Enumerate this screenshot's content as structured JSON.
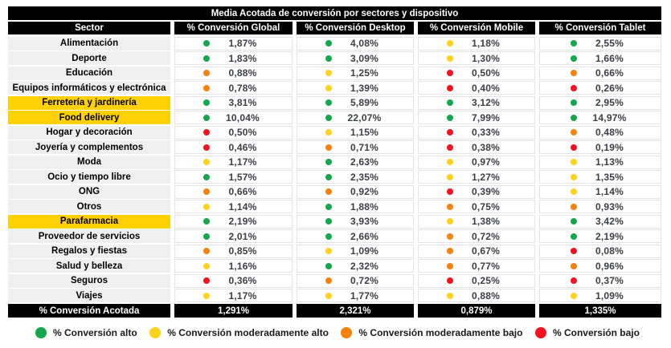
{
  "chart_data": {
    "type": "table",
    "title": "Media Acotada de conversión por sectores y dispositivo",
    "columns": [
      "Sector",
      "% Conversión Global",
      "% Conversión Desktop",
      "% Conversión Mobile",
      "% Conversión Tablet"
    ],
    "rows": [
      {
        "sector": "Alimentación",
        "highlighted": false,
        "cells": [
          {
            "level": "green",
            "value": "1,87%"
          },
          {
            "level": "green",
            "value": "4,08%"
          },
          {
            "level": "yellow",
            "value": "1,18%"
          },
          {
            "level": "green",
            "value": "2,55%"
          }
        ]
      },
      {
        "sector": "Deporte",
        "highlighted": false,
        "cells": [
          {
            "level": "green",
            "value": "1,83%"
          },
          {
            "level": "green",
            "value": "3,09%"
          },
          {
            "level": "yellow",
            "value": "1,30%"
          },
          {
            "level": "green",
            "value": "1,66%"
          }
        ]
      },
      {
        "sector": "Educación",
        "highlighted": false,
        "cells": [
          {
            "level": "orange",
            "value": "0,88%"
          },
          {
            "level": "yellow",
            "value": "1,25%"
          },
          {
            "level": "red",
            "value": "0,50%"
          },
          {
            "level": "orange",
            "value": "0,66%"
          }
        ]
      },
      {
        "sector": "Equipos informáticos y electrónica",
        "highlighted": false,
        "cells": [
          {
            "level": "orange",
            "value": "0,78%"
          },
          {
            "level": "yellow",
            "value": "1,39%"
          },
          {
            "level": "red",
            "value": "0,40%"
          },
          {
            "level": "red",
            "value": "0,26%"
          }
        ]
      },
      {
        "sector": "Ferretería y jardinería",
        "highlighted": true,
        "cells": [
          {
            "level": "green",
            "value": "3,81%"
          },
          {
            "level": "green",
            "value": "5,89%"
          },
          {
            "level": "green",
            "value": "3,12%"
          },
          {
            "level": "green",
            "value": "2,95%"
          }
        ]
      },
      {
        "sector": "Food delivery",
        "highlighted": true,
        "cells": [
          {
            "level": "green",
            "value": "10,04%"
          },
          {
            "level": "green",
            "value": "22,07%"
          },
          {
            "level": "green",
            "value": "7,99%"
          },
          {
            "level": "green",
            "value": "14,97%"
          }
        ]
      },
      {
        "sector": "Hogar y decoración",
        "highlighted": false,
        "cells": [
          {
            "level": "red",
            "value": "0,50%"
          },
          {
            "level": "yellow",
            "value": "1,15%"
          },
          {
            "level": "red",
            "value": "0,33%"
          },
          {
            "level": "orange",
            "value": "0,48%"
          }
        ]
      },
      {
        "sector": "Joyería y complementos",
        "highlighted": false,
        "cells": [
          {
            "level": "red",
            "value": "0,46%"
          },
          {
            "level": "orange",
            "value": "0,71%"
          },
          {
            "level": "red",
            "value": "0,38%"
          },
          {
            "level": "red",
            "value": "0,19%"
          }
        ]
      },
      {
        "sector": "Moda",
        "highlighted": false,
        "cells": [
          {
            "level": "yellow",
            "value": "1,17%"
          },
          {
            "level": "green",
            "value": "2,63%"
          },
          {
            "level": "yellow",
            "value": "0,97%"
          },
          {
            "level": "yellow",
            "value": "1,13%"
          }
        ]
      },
      {
        "sector": "Ocio y tiempo libre",
        "highlighted": false,
        "cells": [
          {
            "level": "green",
            "value": "1,57%"
          },
          {
            "level": "green",
            "value": "2,35%"
          },
          {
            "level": "yellow",
            "value": "1,27%"
          },
          {
            "level": "yellow",
            "value": "1,35%"
          }
        ]
      },
      {
        "sector": "ONG",
        "highlighted": false,
        "cells": [
          {
            "level": "orange",
            "value": "0,66%"
          },
          {
            "level": "orange",
            "value": "0,92%"
          },
          {
            "level": "red",
            "value": "0,39%"
          },
          {
            "level": "yellow",
            "value": "1,14%"
          }
        ]
      },
      {
        "sector": "Otros",
        "highlighted": false,
        "cells": [
          {
            "level": "yellow",
            "value": "1,14%"
          },
          {
            "level": "green",
            "value": "1,88%"
          },
          {
            "level": "orange",
            "value": "0,75%"
          },
          {
            "level": "orange",
            "value": "0,93%"
          }
        ]
      },
      {
        "sector": "Parafarmacia",
        "highlighted": true,
        "cells": [
          {
            "level": "green",
            "value": "2,19%"
          },
          {
            "level": "green",
            "value": "3,93%"
          },
          {
            "level": "yellow",
            "value": "1,38%"
          },
          {
            "level": "green",
            "value": "3,42%"
          }
        ]
      },
      {
        "sector": "Proveedor de servicios",
        "highlighted": false,
        "cells": [
          {
            "level": "green",
            "value": "2,01%"
          },
          {
            "level": "green",
            "value": "2,66%"
          },
          {
            "level": "orange",
            "value": "0,72%"
          },
          {
            "level": "green",
            "value": "2,19%"
          }
        ]
      },
      {
        "sector": "Regalos y fiestas",
        "highlighted": false,
        "cells": [
          {
            "level": "orange",
            "value": "0,85%"
          },
          {
            "level": "yellow",
            "value": "1,09%"
          },
          {
            "level": "orange",
            "value": "0,67%"
          },
          {
            "level": "red",
            "value": "0,08%"
          }
        ]
      },
      {
        "sector": "Salud y belleza",
        "highlighted": false,
        "cells": [
          {
            "level": "yellow",
            "value": "1,16%"
          },
          {
            "level": "green",
            "value": "2,32%"
          },
          {
            "level": "orange",
            "value": "0,77%"
          },
          {
            "level": "orange",
            "value": "0,96%"
          }
        ]
      },
      {
        "sector": "Seguros",
        "highlighted": false,
        "cells": [
          {
            "level": "red",
            "value": "0,36%"
          },
          {
            "level": "orange",
            "value": "0,72%"
          },
          {
            "level": "red",
            "value": "0,25%"
          },
          {
            "level": "red",
            "value": "0,37%"
          }
        ]
      },
      {
        "sector": "Viajes",
        "highlighted": false,
        "cells": [
          {
            "level": "yellow",
            "value": "1,17%"
          },
          {
            "level": "yellow",
            "value": "1,77%"
          },
          {
            "level": "yellow",
            "value": "0,88%"
          },
          {
            "level": "yellow",
            "value": "1,09%"
          }
        ]
      }
    ],
    "footer": {
      "label": "% Conversión Acotada",
      "values": [
        "1,291%",
        "2,321%",
        "0,879%",
        "1,335%"
      ]
    },
    "legend": [
      {
        "level": "green",
        "label": "% Conversión alto"
      },
      {
        "level": "yellow",
        "label": "% Conversión moderadamente alto"
      },
      {
        "level": "orange",
        "label": "% Conversión moderadamente bajo"
      },
      {
        "level": "red",
        "label": "% Conversión bajo"
      }
    ]
  },
  "colors": {
    "green": "#14A74C",
    "yellow": "#FFD21C",
    "orange": "#F5820D",
    "red": "#F6111E",
    "highlight": "#FFD103",
    "header_bg": "#000000"
  }
}
